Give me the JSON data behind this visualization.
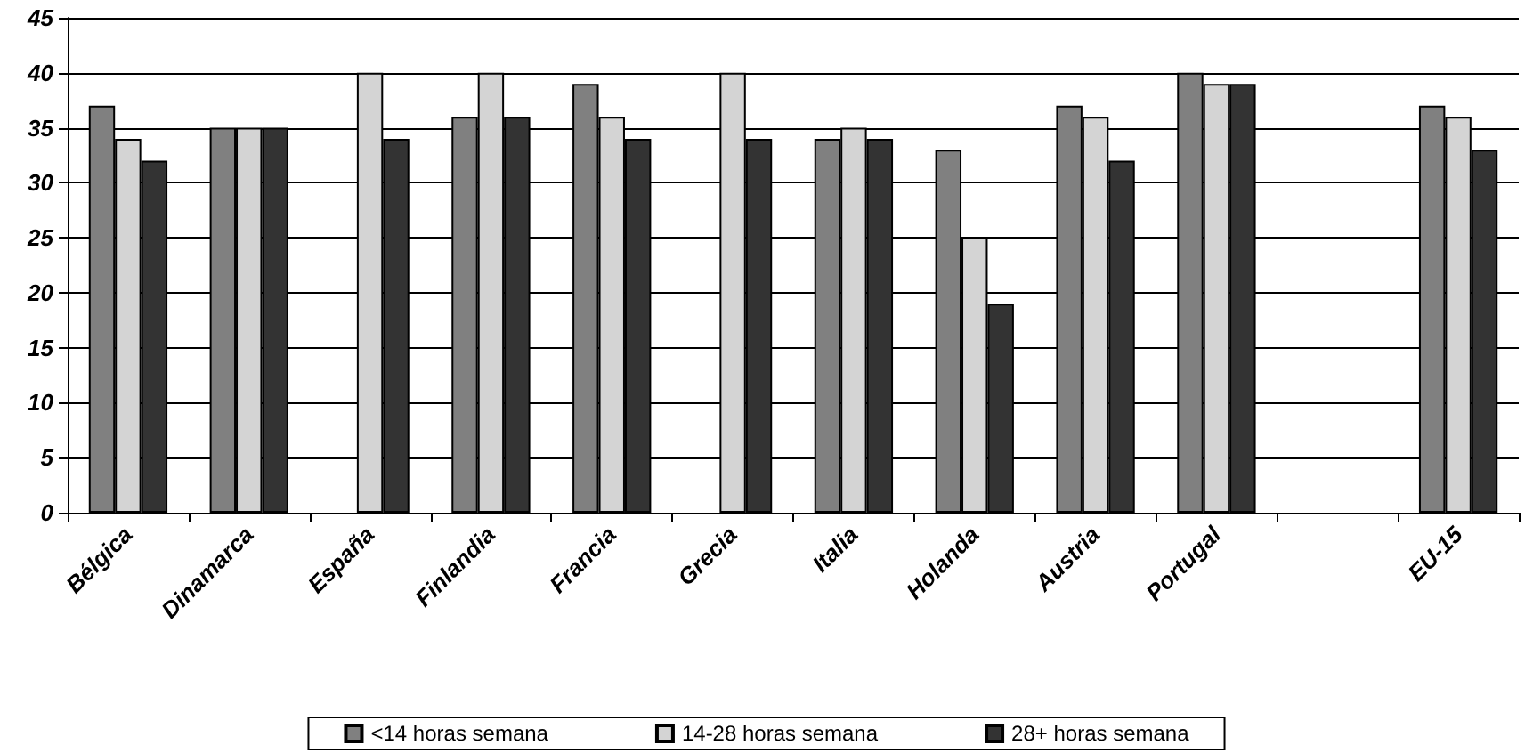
{
  "chart_data": {
    "type": "bar",
    "categories": [
      "Bélgica",
      "Dinamarca",
      "España",
      "Finlandia",
      "Francia",
      "Grecia",
      "Italia",
      "Holanda",
      "Austria",
      "Portugal",
      null,
      "EU-15"
    ],
    "series": [
      {
        "name": "<14 horas semana",
        "color": "#808080",
        "values": [
          37,
          35,
          null,
          36,
          39,
          null,
          34,
          33,
          37,
          40,
          null,
          37
        ]
      },
      {
        "name": "14-28 horas semana",
        "color": "#d4d4d4",
        "values": [
          34,
          35,
          40,
          40,
          36,
          40,
          35,
          25,
          36,
          39,
          null,
          36
        ]
      },
      {
        "name": "28+ horas semana",
        "color": "#333333",
        "values": [
          32,
          35,
          34,
          36,
          34,
          34,
          34,
          19,
          32,
          39,
          null,
          33
        ]
      }
    ],
    "ylim": [
      0,
      45
    ],
    "yticks": [
      0,
      5,
      10,
      15,
      20,
      25,
      30,
      35,
      40,
      45
    ],
    "grid": "y",
    "legend": "bottom"
  }
}
